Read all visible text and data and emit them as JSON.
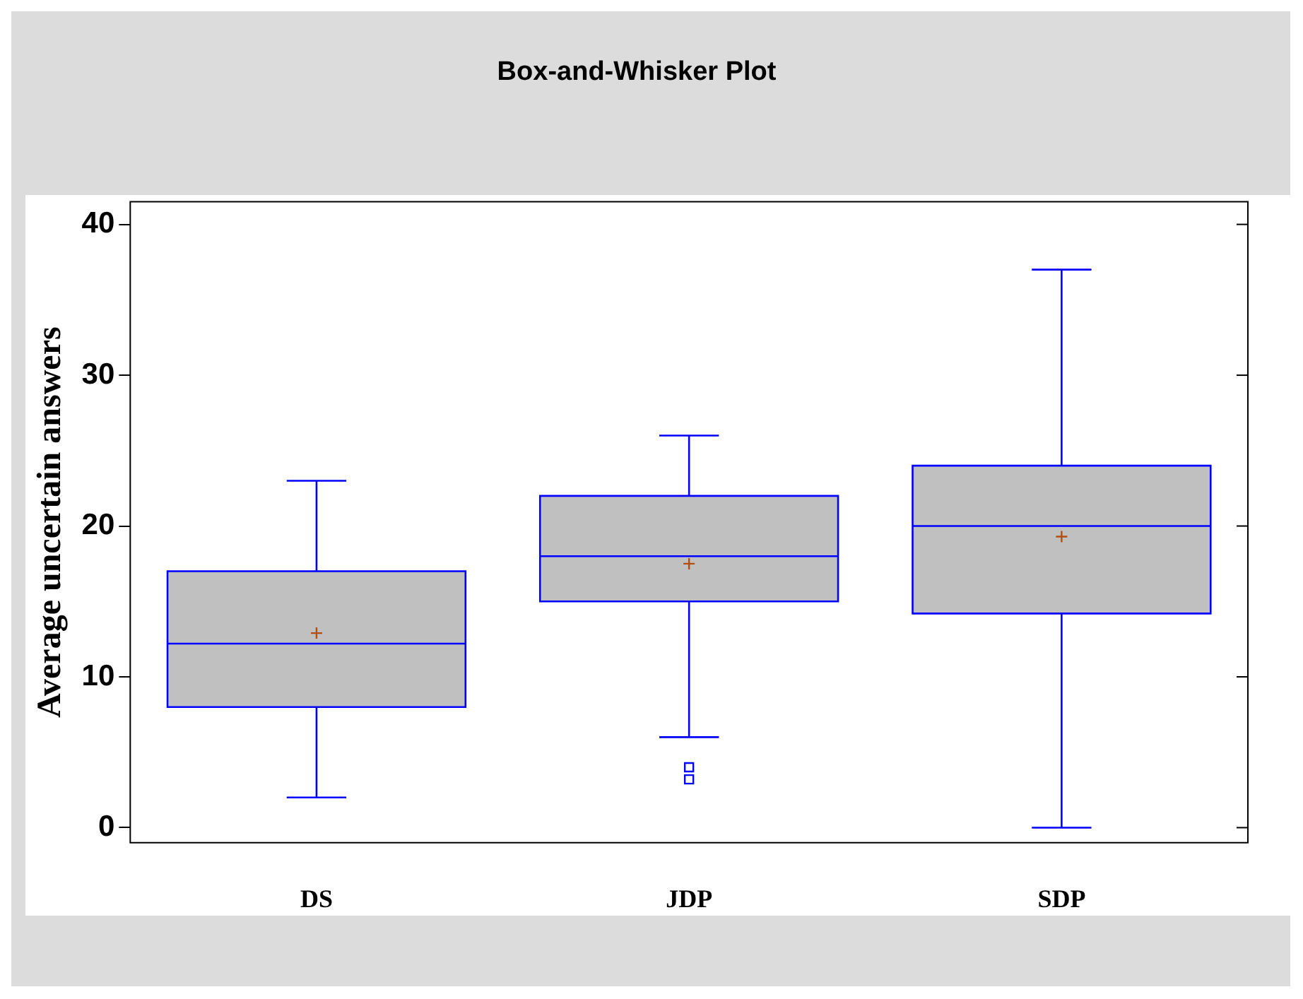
{
  "chart_data": {
    "type": "box",
    "title": "Box-and-Whisker Plot",
    "ylabel": "Average uncertain answers",
    "categories": [
      "DS",
      "JDP",
      "SDP"
    ],
    "color": "#c0c0c0",
    "boxes": [
      {
        "low": 2,
        "q1": 8,
        "median": 12.2,
        "q3": 17,
        "high": 23,
        "mean": 12.9
      },
      {
        "low": 6,
        "q1": 15,
        "median": 18,
        "q3": 22,
        "high": 26,
        "mean": 17.5,
        "outliers": [
          4,
          3.2
        ]
      },
      {
        "low": 0,
        "q1": 14.2,
        "median": 20,
        "q3": 24,
        "high": 37,
        "mean": 19.3
      }
    ],
    "ylim": [
      -1,
      41.5
    ],
    "yticks": [
      0,
      10,
      20,
      30,
      40
    ],
    "grid": false,
    "legend": false
  }
}
